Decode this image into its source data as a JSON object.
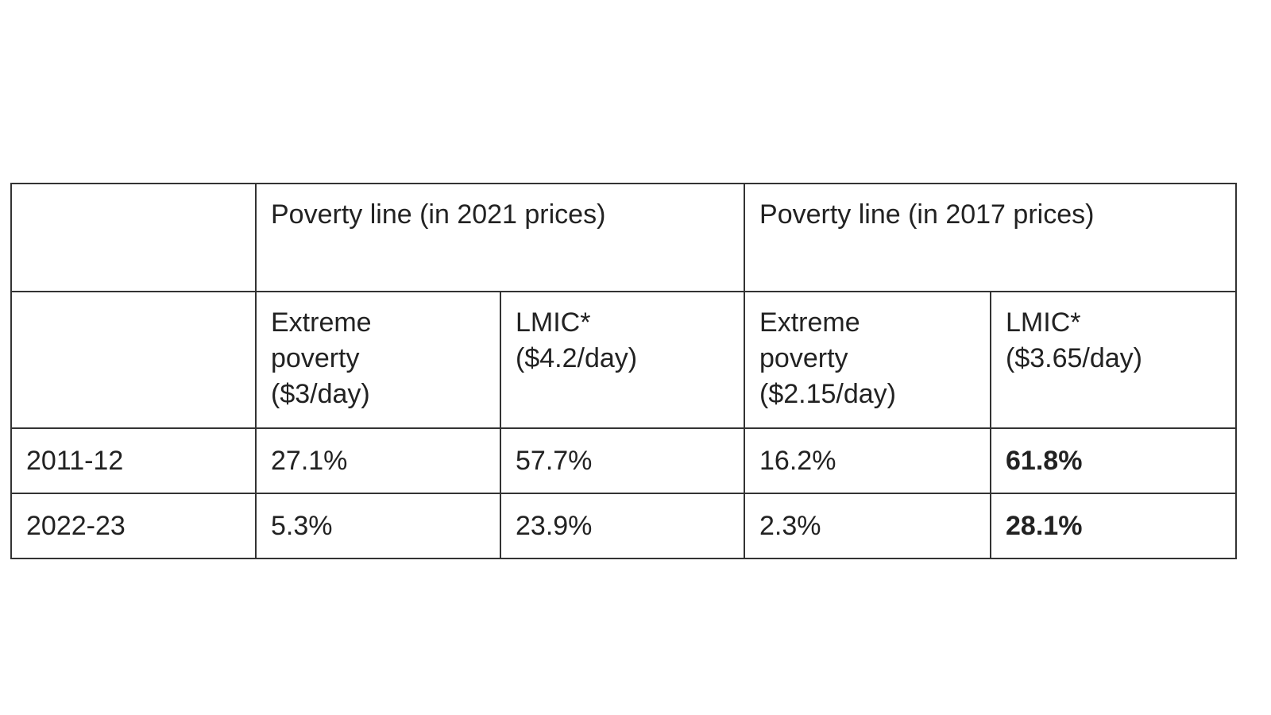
{
  "table": {
    "group_headers": [
      {
        "label": "",
        "span": 1
      },
      {
        "label": "Poverty line (in 2021 prices)",
        "span": 2
      },
      {
        "label": "Poverty line (in 2017 prices)",
        "span": 2
      }
    ],
    "sub_headers": [
      "",
      [
        "Extreme",
        "poverty",
        "($3/day)"
      ],
      [
        "LMIC*",
        "($4.2/day)"
      ],
      [
        "Extreme",
        "poverty",
        "($2.15/day)"
      ],
      [
        "LMIC*",
        "($3.65/day)"
      ]
    ],
    "rows": [
      {
        "year": "2011-12",
        "values": [
          "27.1%",
          "57.7%",
          "16.2%",
          "61.8%"
        ]
      },
      {
        "year": "2022-23",
        "values": [
          "5.3%",
          "23.9%",
          "2.3%",
          "28.1%"
        ]
      }
    ],
    "bold_column": 4
  }
}
